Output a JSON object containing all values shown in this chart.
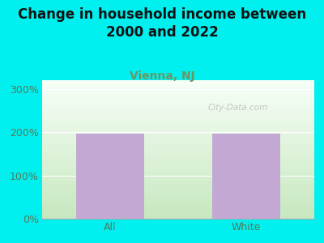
{
  "categories": [
    "All",
    "White"
  ],
  "values": [
    197,
    197
  ],
  "bar_color": "#c4a8d4",
  "background_color": "#00f0f0",
  "title": "Change in household income between\n2000 and 2022",
  "subtitle": "Vienna, NJ",
  "title_fontsize": 12,
  "subtitle_fontsize": 10,
  "yticks": [
    0,
    100,
    200,
    300
  ],
  "ylim": [
    0,
    320
  ],
  "watermark": "City-Data.com",
  "bar_width": 0.5,
  "subtitle_color": "#669966",
  "tick_label_color": "#557755",
  "grad_bottom": "#c8e8c0",
  "grad_top": "#f8fff8",
  "grid_color": "#dddddd"
}
